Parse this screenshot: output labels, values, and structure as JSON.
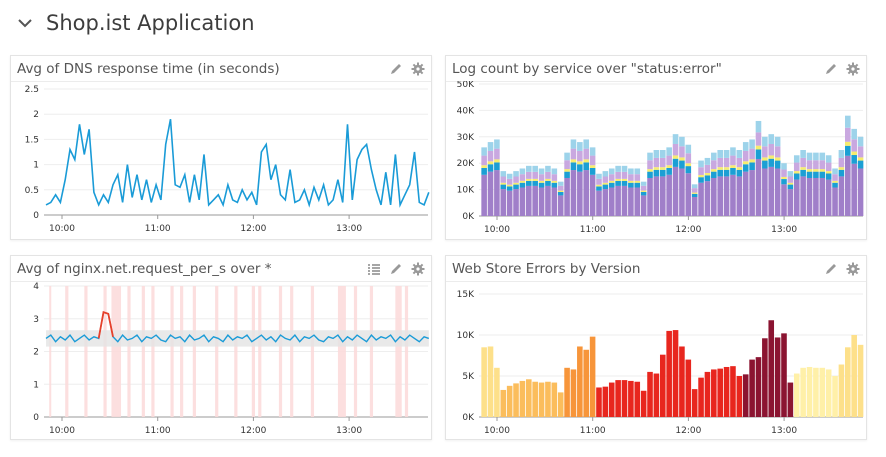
{
  "group": {
    "title": "Shop.ist Application"
  },
  "colors": {
    "line_blue": "#1a9bd7",
    "anomaly_red": "#e8402a",
    "band_pink": "#fbd9d9",
    "band_gray": "#e3e3e3"
  },
  "chart_data": [
    {
      "id": "dns",
      "type": "line",
      "title": "Avg of DNS response time (in seconds)",
      "x_unit": "minutes since 10:00",
      "x_start": -10,
      "x_step": 3,
      "ylim": [
        0,
        2.5
      ],
      "yticks": [
        "0",
        "0.5",
        "1",
        "1.5",
        "2",
        "2.5"
      ],
      "ytick_values": [
        0,
        0.5,
        1,
        1.5,
        2,
        2.5
      ],
      "xticks": [
        "10:00",
        "11:00",
        "12:00",
        "13:00"
      ],
      "color": "#1a9bd7",
      "values": [
        0.2,
        0.25,
        0.4,
        0.25,
        0.7,
        1.3,
        1.1,
        1.8,
        1.2,
        1.7,
        0.45,
        0.2,
        0.4,
        0.25,
        0.6,
        0.8,
        0.25,
        1.0,
        0.35,
        0.8,
        0.3,
        0.7,
        0.25,
        0.6,
        0.3,
        1.4,
        1.9,
        0.6,
        0.55,
        0.8,
        0.25,
        0.8,
        0.3,
        1.2,
        0.2,
        0.3,
        0.4,
        0.2,
        0.6,
        0.3,
        0.25,
        0.5,
        0.3,
        0.45,
        0.2,
        1.25,
        1.4,
        0.7,
        1.0,
        0.4,
        0.3,
        0.9,
        0.25,
        0.3,
        0.5,
        0.2,
        0.55,
        0.3,
        0.6,
        0.2,
        0.3,
        0.7,
        0.25,
        1.8,
        0.3,
        1.1,
        1.3,
        1.4,
        0.9,
        0.5,
        0.2,
        0.85,
        0.2,
        1.2,
        0.2,
        0.4,
        0.6,
        1.25,
        0.25,
        0.2,
        0.45
      ]
    },
    {
      "id": "logs",
      "type": "bar",
      "stacked": true,
      "title": "Log count by service over \"status:error\"",
      "x_unit": "minutes since 10:00",
      "x_start": -10,
      "x_step": 4,
      "ylim": [
        0,
        50000
      ],
      "yticks": [
        "0K",
        "10K",
        "20K",
        "30K",
        "40K",
        "50K"
      ],
      "ytick_values": [
        0,
        10000,
        20000,
        30000,
        40000,
        50000
      ],
      "xticks": [
        "10:00",
        "11:00",
        "12:00",
        "13:00"
      ],
      "totals_k": [
        26,
        28,
        29,
        17,
        16,
        17,
        18,
        19,
        19,
        18,
        19,
        18,
        13,
        24,
        29,
        28,
        29,
        26,
        16,
        17,
        18,
        19,
        19,
        18,
        18,
        13,
        24,
        25,
        25,
        26,
        31,
        30,
        27,
        12,
        21,
        22,
        24,
        25,
        25,
        26,
        25,
        28,
        29,
        36,
        30,
        31,
        30,
        20,
        17,
        23,
        25,
        24,
        24,
        24,
        23,
        18,
        25,
        38,
        33,
        30
      ],
      "series": [
        {
          "color": "#a07fc9",
          "share": 0.6
        },
        {
          "color": "#1b9fd4",
          "share": 0.1
        },
        {
          "color": "#f6ec6e",
          "share": 0.04
        },
        {
          "color": "#c9a8e0",
          "share": 0.14
        },
        {
          "color": "#9dd3ea",
          "share": 0.12
        }
      ]
    },
    {
      "id": "nginx",
      "type": "line",
      "title": "Avg of nginx.net.request_per_s over *",
      "x_unit": "minutes since 10:00",
      "x_start": -10,
      "x_step": 3,
      "ylim": [
        0,
        4
      ],
      "yticks": [
        "0",
        "1",
        "2",
        "3",
        "4"
      ],
      "ytick_values": [
        0,
        1,
        2,
        3,
        4
      ],
      "xticks": [
        "10:00",
        "11:00",
        "12:00",
        "13:00"
      ],
      "band": 0.2,
      "anomaly_indices": [
        11,
        12,
        13,
        14
      ],
      "values": [
        2.4,
        2.5,
        2.3,
        2.45,
        2.35,
        2.5,
        2.3,
        2.4,
        2.5,
        2.35,
        2.45,
        2.4,
        3.2,
        3.15,
        2.45,
        2.3,
        2.5,
        2.35,
        2.4,
        2.5,
        2.3,
        2.45,
        2.4,
        2.5,
        2.35,
        2.3,
        2.5,
        2.4,
        2.45,
        2.3,
        2.5,
        2.35,
        2.4,
        2.5,
        2.3,
        2.45,
        2.4,
        2.3,
        2.5,
        2.35,
        2.45,
        2.4,
        2.5,
        2.3,
        2.4,
        2.5,
        2.35,
        2.45,
        2.3,
        2.5,
        2.4,
        2.35,
        2.5,
        2.3,
        2.45,
        2.4,
        2.5,
        2.35,
        2.3,
        2.45,
        2.4,
        2.5,
        2.3,
        2.45,
        2.35,
        2.5,
        2.4,
        2.3,
        2.5,
        2.35,
        2.45,
        2.4,
        2.5,
        2.3,
        2.45,
        2.35,
        2.5,
        2.4,
        2.3,
        2.45,
        2.4
      ],
      "anomaly_windows": [
        [
          -8,
          -7
        ],
        [
          2,
          4
        ],
        [
          14,
          16
        ],
        [
          26,
          28
        ],
        [
          31,
          37
        ],
        [
          41,
          43
        ],
        [
          50,
          52
        ],
        [
          56,
          58
        ],
        [
          68,
          70
        ],
        [
          74,
          76
        ],
        [
          82,
          84
        ],
        [
          96,
          98
        ],
        [
          108,
          110
        ],
        [
          119,
          121
        ],
        [
          123,
          125
        ],
        [
          136,
          138
        ],
        [
          143,
          145
        ],
        [
          156,
          158
        ],
        [
          173,
          178
        ],
        [
          183,
          185
        ],
        [
          193,
          195
        ],
        [
          209,
          213
        ],
        [
          215,
          217
        ]
      ]
    },
    {
      "id": "webstore",
      "type": "bar",
      "title": "Web Store Errors by Version",
      "x_unit": "minutes since 10:00",
      "x_start": -10,
      "x_step": 4,
      "ylim": [
        0,
        15000
      ],
      "yticks": [
        "0K",
        "5K",
        "10K",
        "15K"
      ],
      "ytick_values": [
        0,
        5000,
        10000,
        15000
      ],
      "xticks": [
        "10:00",
        "11:00",
        "12:00",
        "13:00"
      ],
      "version_colors": [
        "#fde08a",
        "#fbbd5c",
        "#f7953a",
        "#e8261e",
        "#8b1431",
        "#fff0a8"
      ],
      "values_k": [
        8.5,
        8.6,
        6,
        3.3,
        3.8,
        4.1,
        4.4,
        4.6,
        4.3,
        4.2,
        4.3,
        4.2,
        3.0,
        6,
        5.8,
        8.6,
        8.2,
        9.8,
        3.6,
        3.7,
        4.2,
        4.5,
        4.5,
        4.4,
        4.3,
        3.2,
        5.5,
        5.3,
        7.6,
        10.5,
        10.6,
        8.6,
        7,
        3.4,
        4.8,
        5.5,
        5.8,
        5.9,
        6.1,
        6.2,
        5,
        5.2,
        7,
        7.3,
        9.6,
        11.8,
        9.7,
        10.2,
        4.2,
        5.3,
        6,
        6.1,
        6,
        6,
        5.8,
        5,
        6.4,
        8.5,
        10,
        8.8
      ],
      "versions": [
        0,
        0,
        0,
        1,
        1,
        1,
        1,
        1,
        1,
        1,
        1,
        1,
        1,
        2,
        2,
        2,
        2,
        2,
        3,
        3,
        3,
        3,
        3,
        3,
        3,
        3,
        3,
        3,
        3,
        3,
        3,
        3,
        3,
        3,
        3,
        3,
        3,
        3,
        3,
        3,
        3,
        4,
        4,
        4,
        4,
        4,
        4,
        4,
        4,
        5,
        5,
        5,
        5,
        5,
        5,
        5,
        0,
        0,
        0,
        0
      ]
    }
  ]
}
